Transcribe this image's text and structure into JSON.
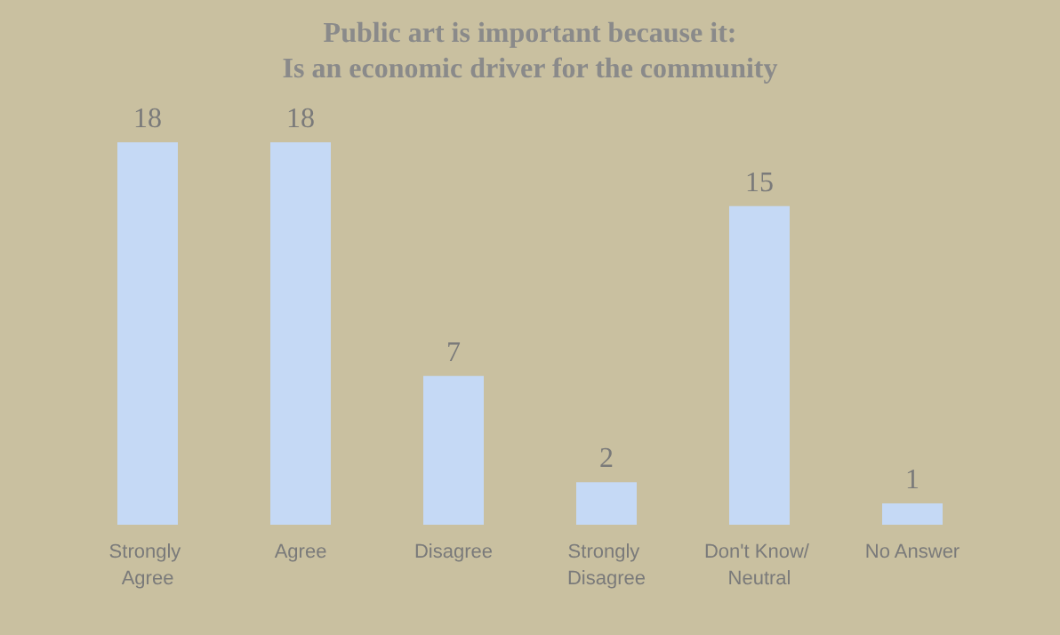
{
  "chart_data": {
    "type": "bar",
    "title": "Public art is important because it:",
    "subtitle": "Is an economic driver for the community",
    "categories": [
      "Strongly Agree",
      "Agree",
      "Disagree",
      "Strongly Disagree",
      "Don't Know/ Neutral",
      "No Answer"
    ],
    "values": [
      18,
      18,
      7,
      2,
      15,
      1
    ],
    "color": "#c5d9f5",
    "data_labels": true
  }
}
